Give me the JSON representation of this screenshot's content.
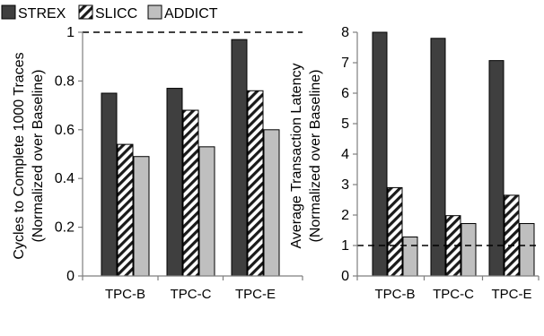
{
  "legend": [
    {
      "name": "STREX",
      "color": "#3f3f3f",
      "pattern": "solid"
    },
    {
      "name": "SLICC",
      "color": "#ffffff",
      "pattern": "hatch"
    },
    {
      "name": "ADDICT",
      "color": "#bfbfbf",
      "pattern": "solid"
    }
  ],
  "chart_data": [
    {
      "type": "bar",
      "categories": [
        "TPC-B",
        "TPC-C",
        "TPC-E"
      ],
      "series": [
        {
          "name": "STREX",
          "values": [
            0.75,
            0.77,
            0.97
          ]
        },
        {
          "name": "SLICC",
          "values": [
            0.54,
            0.68,
            0.76
          ]
        },
        {
          "name": "ADDICT",
          "values": [
            0.49,
            0.53,
            0.6
          ]
        }
      ],
      "ylabel_line1": "Cycles to Complete 1000 Traces",
      "ylabel_line2": "(Normalized over Baseline)",
      "ylim": [
        0,
        1
      ],
      "yticks": [
        "0",
        "0.2",
        "0.4",
        "0.6",
        "0.8",
        "1"
      ],
      "reference_line": 1,
      "grid": false
    },
    {
      "type": "bar",
      "categories": [
        "TPC-B",
        "TPC-C",
        "TPC-E"
      ],
      "series": [
        {
          "name": "STREX",
          "values": [
            8.0,
            7.8,
            7.07
          ]
        },
        {
          "name": "SLICC",
          "values": [
            2.9,
            1.98,
            2.65
          ]
        },
        {
          "name": "ADDICT",
          "values": [
            1.28,
            1.72,
            1.72
          ]
        }
      ],
      "ylabel_line1": "Average Transaction Latency",
      "ylabel_line2": "(Normalized over Baseline)",
      "ylim": [
        0,
        8
      ],
      "yticks": [
        "0",
        "1",
        "2",
        "3",
        "4",
        "5",
        "6",
        "7",
        "8"
      ],
      "reference_line": 1,
      "grid": false
    }
  ]
}
